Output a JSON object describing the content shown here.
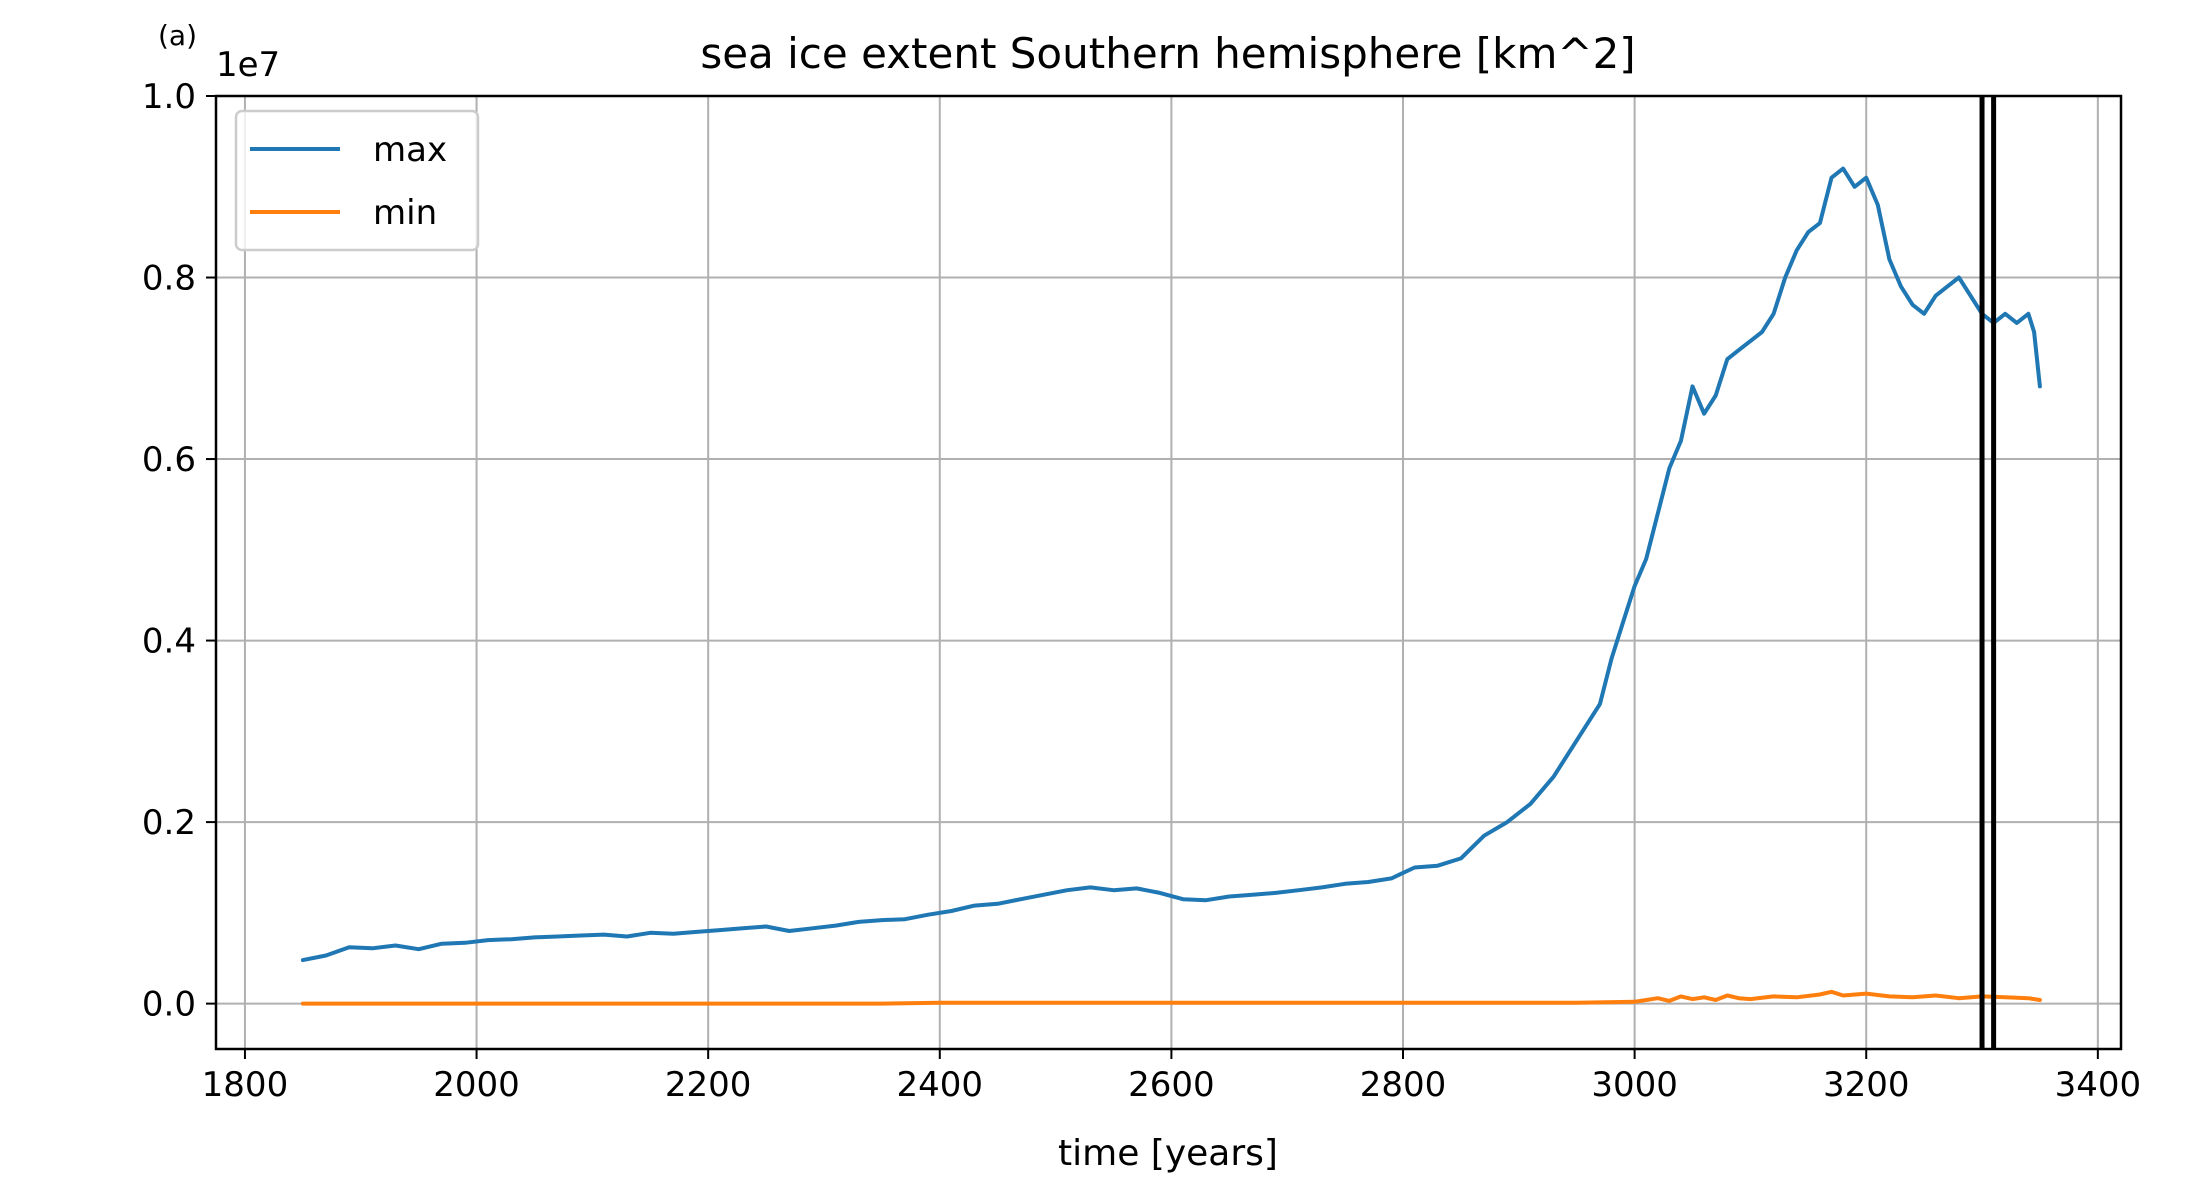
{
  "panel_label": "(a)",
  "chart_data": {
    "type": "line",
    "title": "sea ice extent Southern hemisphere [km^2]",
    "xlabel": "time [years]",
    "ylabel": "",
    "y_offset_label": "1e7",
    "y_scale_factor": 10000000,
    "xlim": [
      1775,
      3420
    ],
    "ylim": [
      -0.05,
      1.0
    ],
    "x_ticks": [
      1800,
      2000,
      2200,
      2400,
      2600,
      2800,
      3000,
      3200,
      3400
    ],
    "x_tick_labels": [
      "1800",
      "2000",
      "2200",
      "2400",
      "2600",
      "2800",
      "3000",
      "3200",
      "3400"
    ],
    "y_ticks": [
      0.0,
      0.2,
      0.4,
      0.6,
      0.8,
      1.0
    ],
    "y_tick_labels": [
      "0.0",
      "0.2",
      "0.4",
      "0.6",
      "0.8",
      "1.0"
    ],
    "grid": true,
    "legend_position": "top-left",
    "vertical_lines": [
      3300,
      3310
    ],
    "vertical_line_color": "#000000",
    "series": [
      {
        "name": "max",
        "color": "#1f77b4",
        "x": [
          1850,
          1870,
          1890,
          1910,
          1930,
          1950,
          1970,
          1990,
          2010,
          2030,
          2050,
          2070,
          2090,
          2110,
          2130,
          2150,
          2170,
          2190,
          2210,
          2230,
          2250,
          2270,
          2290,
          2310,
          2330,
          2350,
          2370,
          2390,
          2410,
          2430,
          2450,
          2470,
          2490,
          2510,
          2530,
          2550,
          2570,
          2590,
          2610,
          2630,
          2650,
          2670,
          2690,
          2710,
          2730,
          2750,
          2770,
          2790,
          2810,
          2830,
          2850,
          2870,
          2890,
          2910,
          2930,
          2950,
          2970,
          2980,
          2990,
          3000,
          3010,
          3020,
          3030,
          3040,
          3050,
          3060,
          3070,
          3080,
          3090,
          3100,
          3110,
          3120,
          3130,
          3140,
          3150,
          3160,
          3170,
          3180,
          3190,
          3200,
          3210,
          3220,
          3230,
          3240,
          3250,
          3260,
          3270,
          3280,
          3290,
          3300,
          3310,
          3320,
          3330,
          3340,
          3345,
          3350
        ],
        "values": [
          0.048,
          0.053,
          0.062,
          0.061,
          0.064,
          0.06,
          0.066,
          0.067,
          0.07,
          0.071,
          0.073,
          0.074,
          0.075,
          0.076,
          0.074,
          0.078,
          0.077,
          0.079,
          0.081,
          0.083,
          0.085,
          0.08,
          0.083,
          0.086,
          0.09,
          0.092,
          0.093,
          0.098,
          0.102,
          0.108,
          0.11,
          0.115,
          0.12,
          0.125,
          0.128,
          0.125,
          0.127,
          0.122,
          0.115,
          0.114,
          0.118,
          0.12,
          0.122,
          0.125,
          0.128,
          0.132,
          0.134,
          0.138,
          0.15,
          0.152,
          0.16,
          0.185,
          0.2,
          0.22,
          0.25,
          0.29,
          0.33,
          0.38,
          0.42,
          0.46,
          0.49,
          0.54,
          0.59,
          0.62,
          0.68,
          0.65,
          0.67,
          0.71,
          0.72,
          0.73,
          0.74,
          0.76,
          0.8,
          0.83,
          0.85,
          0.86,
          0.91,
          0.92,
          0.9,
          0.91,
          0.88,
          0.82,
          0.79,
          0.77,
          0.76,
          0.78,
          0.79,
          0.8,
          0.78,
          0.76,
          0.75,
          0.76,
          0.75,
          0.76,
          0.74,
          0.68
        ]
      },
      {
        "name": "min",
        "color": "#ff7f0e",
        "x": [
          1850,
          1900,
          1950,
          2000,
          2050,
          2100,
          2150,
          2200,
          2250,
          2300,
          2350,
          2400,
          2450,
          2500,
          2550,
          2600,
          2650,
          2700,
          2750,
          2800,
          2850,
          2900,
          2950,
          3000,
          3010,
          3020,
          3030,
          3040,
          3050,
          3060,
          3070,
          3080,
          3090,
          3100,
          3120,
          3140,
          3160,
          3170,
          3180,
          3200,
          3220,
          3240,
          3260,
          3280,
          3300,
          3320,
          3340,
          3350
        ],
        "values": [
          0.0,
          0.0,
          0.0,
          0.0,
          0.0,
          0.0,
          0.0,
          0.0,
          0.0,
          0.0,
          0.0,
          0.001,
          0.001,
          0.001,
          0.001,
          0.001,
          0.001,
          0.001,
          0.001,
          0.001,
          0.001,
          0.001,
          0.001,
          0.002,
          0.004,
          0.006,
          0.003,
          0.008,
          0.005,
          0.007,
          0.004,
          0.009,
          0.006,
          0.005,
          0.008,
          0.007,
          0.01,
          0.013,
          0.009,
          0.011,
          0.008,
          0.007,
          0.009,
          0.006,
          0.008,
          0.007,
          0.006,
          0.004
        ]
      }
    ]
  }
}
